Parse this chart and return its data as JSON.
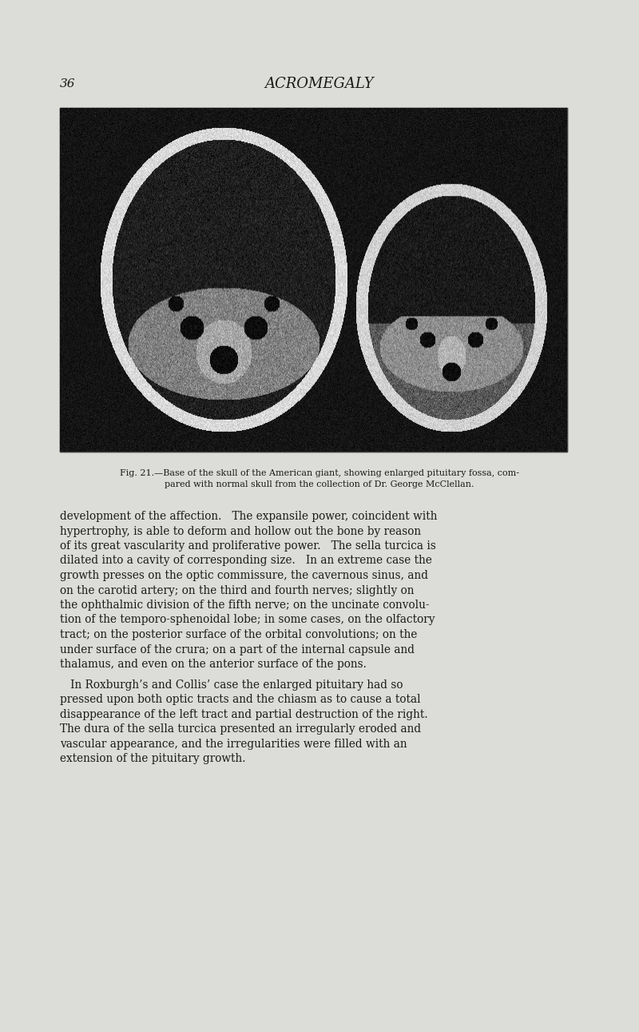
{
  "background_color": "#dcdcd8",
  "page_number": "36",
  "header_title": "ACROMEGALY",
  "header_fontsize": 13,
  "page_number_fontsize": 11,
  "text_color": "#1a1a1a",
  "caption_line1": "Fig. 21.—Base of the skull of the American giant, showing enlarged pituitary fossa, com-",
  "caption_line2": "pared with normal skull from the collection of Dr. George McClellan.",
  "caption_fontsize": 8.0,
  "body_fontsize": 9.8,
  "para1_lines": [
    "development of the affection.   The expansile power, coincident with",
    "hypertrophy, is able to deform and hollow out the bone by reason",
    "of its great vascularity and proliferative power.   The sella turcica is",
    "dilated into a cavity of corresponding size.   In an extreme case the",
    "growth presses on the optic commissure, the cavernous sinus, and",
    "on the carotid artery; on the third and fourth nerves; slightly on",
    "the ophthalmic division of the fifth nerve; on the uncinate convolu-",
    "tion of the temporo-sphenoidal lobe; in some cases, on the olfactory",
    "tract; on the posterior surface of the orbital convolutions; on the",
    "under surface of the crura; on a part of the internal capsule and",
    "thalamus, and even on the anterior surface of the pons."
  ],
  "para2_lines": [
    "   In Roxburgh’s and Collis’ case the enlarged pituitary had so",
    "pressed upon both optic tracts and the chiasm as to cause a total",
    "disappearance of the left tract and partial destruction of the right.",
    "The dura of the sella turcica presented an irregularly eroded and",
    "vascular appearance, and the irregularities were filled with an",
    "extension of the pituitary growth."
  ]
}
